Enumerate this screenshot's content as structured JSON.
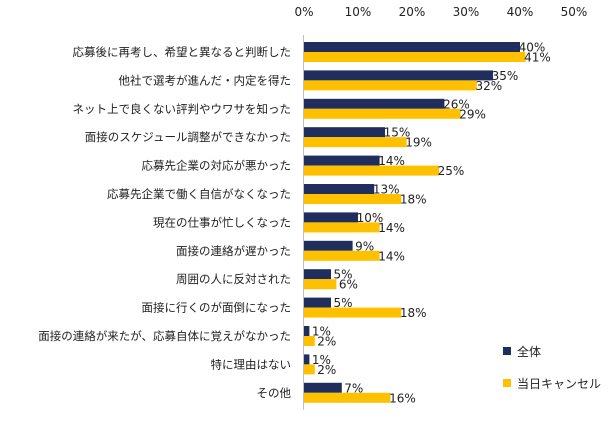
{
  "chart_data": {
    "type": "bar",
    "orientation": "horizontal",
    "title": "",
    "xlabel": "",
    "ylabel": "",
    "xlim": [
      0,
      50
    ],
    "ticks": [
      "0%",
      "10%",
      "20%",
      "30%",
      "40%",
      "50%"
    ],
    "grid": false,
    "legend_position": "bottom-right",
    "categories": [
      "応募後に再考し、希望と異なると判断した",
      "他社で選考が進んだ・内定を得た",
      "ネット上で良くない評判やウワサを知った",
      "面接のスケジュール調整ができなかった",
      "応募先企業の対応が悪かった",
      "応募先企業で働く自信がなくなった",
      "現在の仕事が忙しくなった",
      "面接の連絡が遅かった",
      "周囲の人に反対された",
      "面接に行くのが面倒になった",
      "面接の連絡が来たが、応募自体に覚えがなかった",
      "特に理由はない",
      "その他"
    ],
    "series": [
      {
        "name": "全体",
        "color": "#1f2e5c",
        "values": [
          40,
          35,
          26,
          15,
          14,
          13,
          10,
          9,
          5,
          5,
          1,
          1,
          7
        ]
      },
      {
        "name": "当日キャンセル",
        "color": "#ffc000",
        "values": [
          41,
          32,
          29,
          19,
          25,
          18,
          14,
          14,
          6,
          18,
          2,
          2,
          16
        ]
      }
    ]
  }
}
